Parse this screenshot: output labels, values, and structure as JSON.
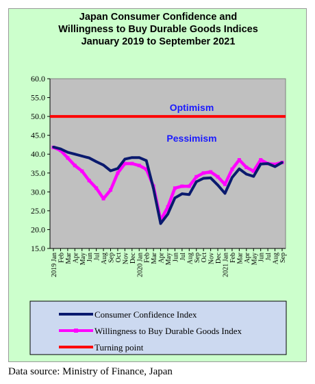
{
  "chart_data": {
    "type": "line",
    "title_lines": [
      "Japan Consumer Confidence and",
      "Willingness to Buy Durable Goods Indices",
      "January 2019 to September 2021"
    ],
    "ylim": [
      15.0,
      60.0
    ],
    "yticks": [
      "60.0",
      "55.0",
      "50.0",
      "45.0",
      "40.0",
      "35.0",
      "30.0",
      "25.0",
      "20.0",
      "15.0"
    ],
    "x": [
      "2019 Jan",
      "Feb",
      "Mar",
      "Apr",
      "May",
      "Jun",
      "Jul",
      "Aug",
      "Sep",
      "Oct",
      "Nov",
      "Dec",
      "2020 Jan",
      "Feb",
      "Mar",
      "Apr",
      "May",
      "Jun",
      "Jul",
      "Aug",
      "Sep",
      "Oct",
      "Nov",
      "Dec",
      "2021 Jan",
      "Feb",
      "Mar",
      "Apr",
      "May",
      "Jun",
      "Jul",
      "Aug",
      "Sep"
    ],
    "series": [
      {
        "name": "Consumer Confidence Index",
        "color": "#0a1a6e",
        "values": [
          41.9,
          41.4,
          40.5,
          40.0,
          39.5,
          39.0,
          38.0,
          37.1,
          35.6,
          36.2,
          38.7,
          39.1,
          39.1,
          38.3,
          30.9,
          21.6,
          24.1,
          28.4,
          29.5,
          29.3,
          32.7,
          33.6,
          33.7,
          31.8,
          29.6,
          33.8,
          36.1,
          34.7,
          34.1,
          37.4,
          37.5,
          36.7,
          37.8
        ]
      },
      {
        "name": "Willingness to Buy Durable Goods Index",
        "color": "#ff00ff",
        "values": [
          41.8,
          41.0,
          39.0,
          37.0,
          35.5,
          33.0,
          31.0,
          28.2,
          30.5,
          35.0,
          37.5,
          37.5,
          37.0,
          36.0,
          31.5,
          22.5,
          26.0,
          31.0,
          31.5,
          31.5,
          34.0,
          35.0,
          35.3,
          34.0,
          32.0,
          36.0,
          38.5,
          36.5,
          35.5,
          38.5,
          37.5,
          37.3,
          37.8
        ]
      }
    ],
    "reference_line": {
      "name": "Turning point",
      "value": 50.0,
      "color": "#ff0000"
    },
    "annotations": [
      {
        "text": "Optimism",
        "color": "#1a1aff"
      },
      {
        "text": "Pessimism",
        "color": "#1a1aff"
      }
    ],
    "legend": {
      "placement": "bottom",
      "entries": [
        "Consumer Confidence Index",
        "Willingness to Buy Durable Goods Index",
        "Turning point"
      ]
    },
    "grid": false
  },
  "source_text": "Data source: Ministry of Finance, Japan"
}
